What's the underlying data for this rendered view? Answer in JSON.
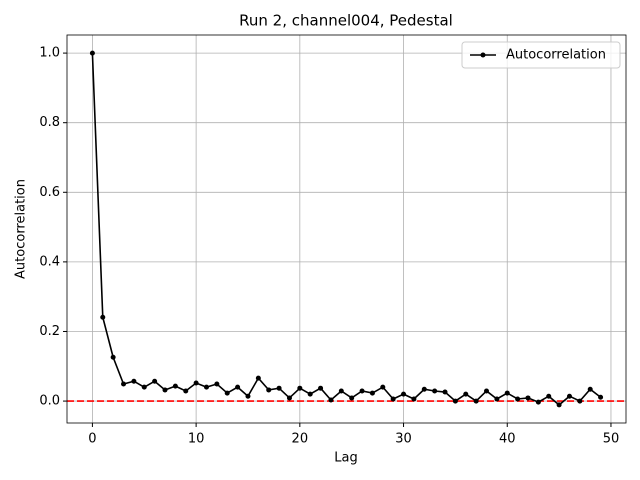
{
  "chart_data": {
    "type": "line",
    "title": "Run 2, channel004, Pedestal",
    "x_label": "Lag",
    "y_label": "Autocorrelation",
    "x": [
      0,
      1,
      2,
      3,
      4,
      5,
      6,
      7,
      8,
      9,
      10,
      11,
      12,
      13,
      14,
      15,
      16,
      17,
      18,
      19,
      20,
      21,
      22,
      23,
      24,
      25,
      26,
      27,
      28,
      29,
      30,
      31,
      32,
      33,
      34,
      35,
      36,
      37,
      38,
      39,
      40,
      41,
      42,
      43,
      44,
      45,
      46,
      47,
      48,
      49
    ],
    "series": [
      {
        "name": "Autocorrelation",
        "color": "#000000",
        "marker": "circle",
        "values": [
          1.0,
          0.241,
          0.126,
          0.049,
          0.057,
          0.04,
          0.057,
          0.032,
          0.043,
          0.029,
          0.052,
          0.04,
          0.049,
          0.023,
          0.04,
          0.014,
          0.066,
          0.032,
          0.037,
          0.009,
          0.037,
          0.02,
          0.037,
          0.003,
          0.029,
          0.009,
          0.029,
          0.023,
          0.04,
          0.006,
          0.02,
          0.006,
          0.034,
          0.029,
          0.026,
          0.0,
          0.02,
          0.0,
          0.029,
          0.006,
          0.023,
          0.006,
          0.009,
          -0.003,
          0.014,
          -0.011,
          0.014,
          0.0,
          0.034,
          0.011
        ]
      }
    ],
    "reference_line": {
      "y": 0,
      "color": "#ff0000",
      "style": "dashed"
    },
    "xlim": [
      -2.45,
      51.45
    ],
    "xticks": [
      0,
      10,
      20,
      30,
      40,
      50
    ],
    "ylim": [
      -0.063,
      1.052
    ],
    "yticks": [
      {
        "value": 0,
        "label": "0.0"
      },
      {
        "value": 0.2,
        "label": "0.2"
      },
      {
        "value": 0.4,
        "label": "0.4"
      },
      {
        "value": 0.6,
        "label": "0.6"
      },
      {
        "value": 0.8,
        "label": "0.8"
      },
      {
        "value": 1,
        "label": "1.0"
      }
    ],
    "grid": true,
    "legend": "upper-right"
  }
}
